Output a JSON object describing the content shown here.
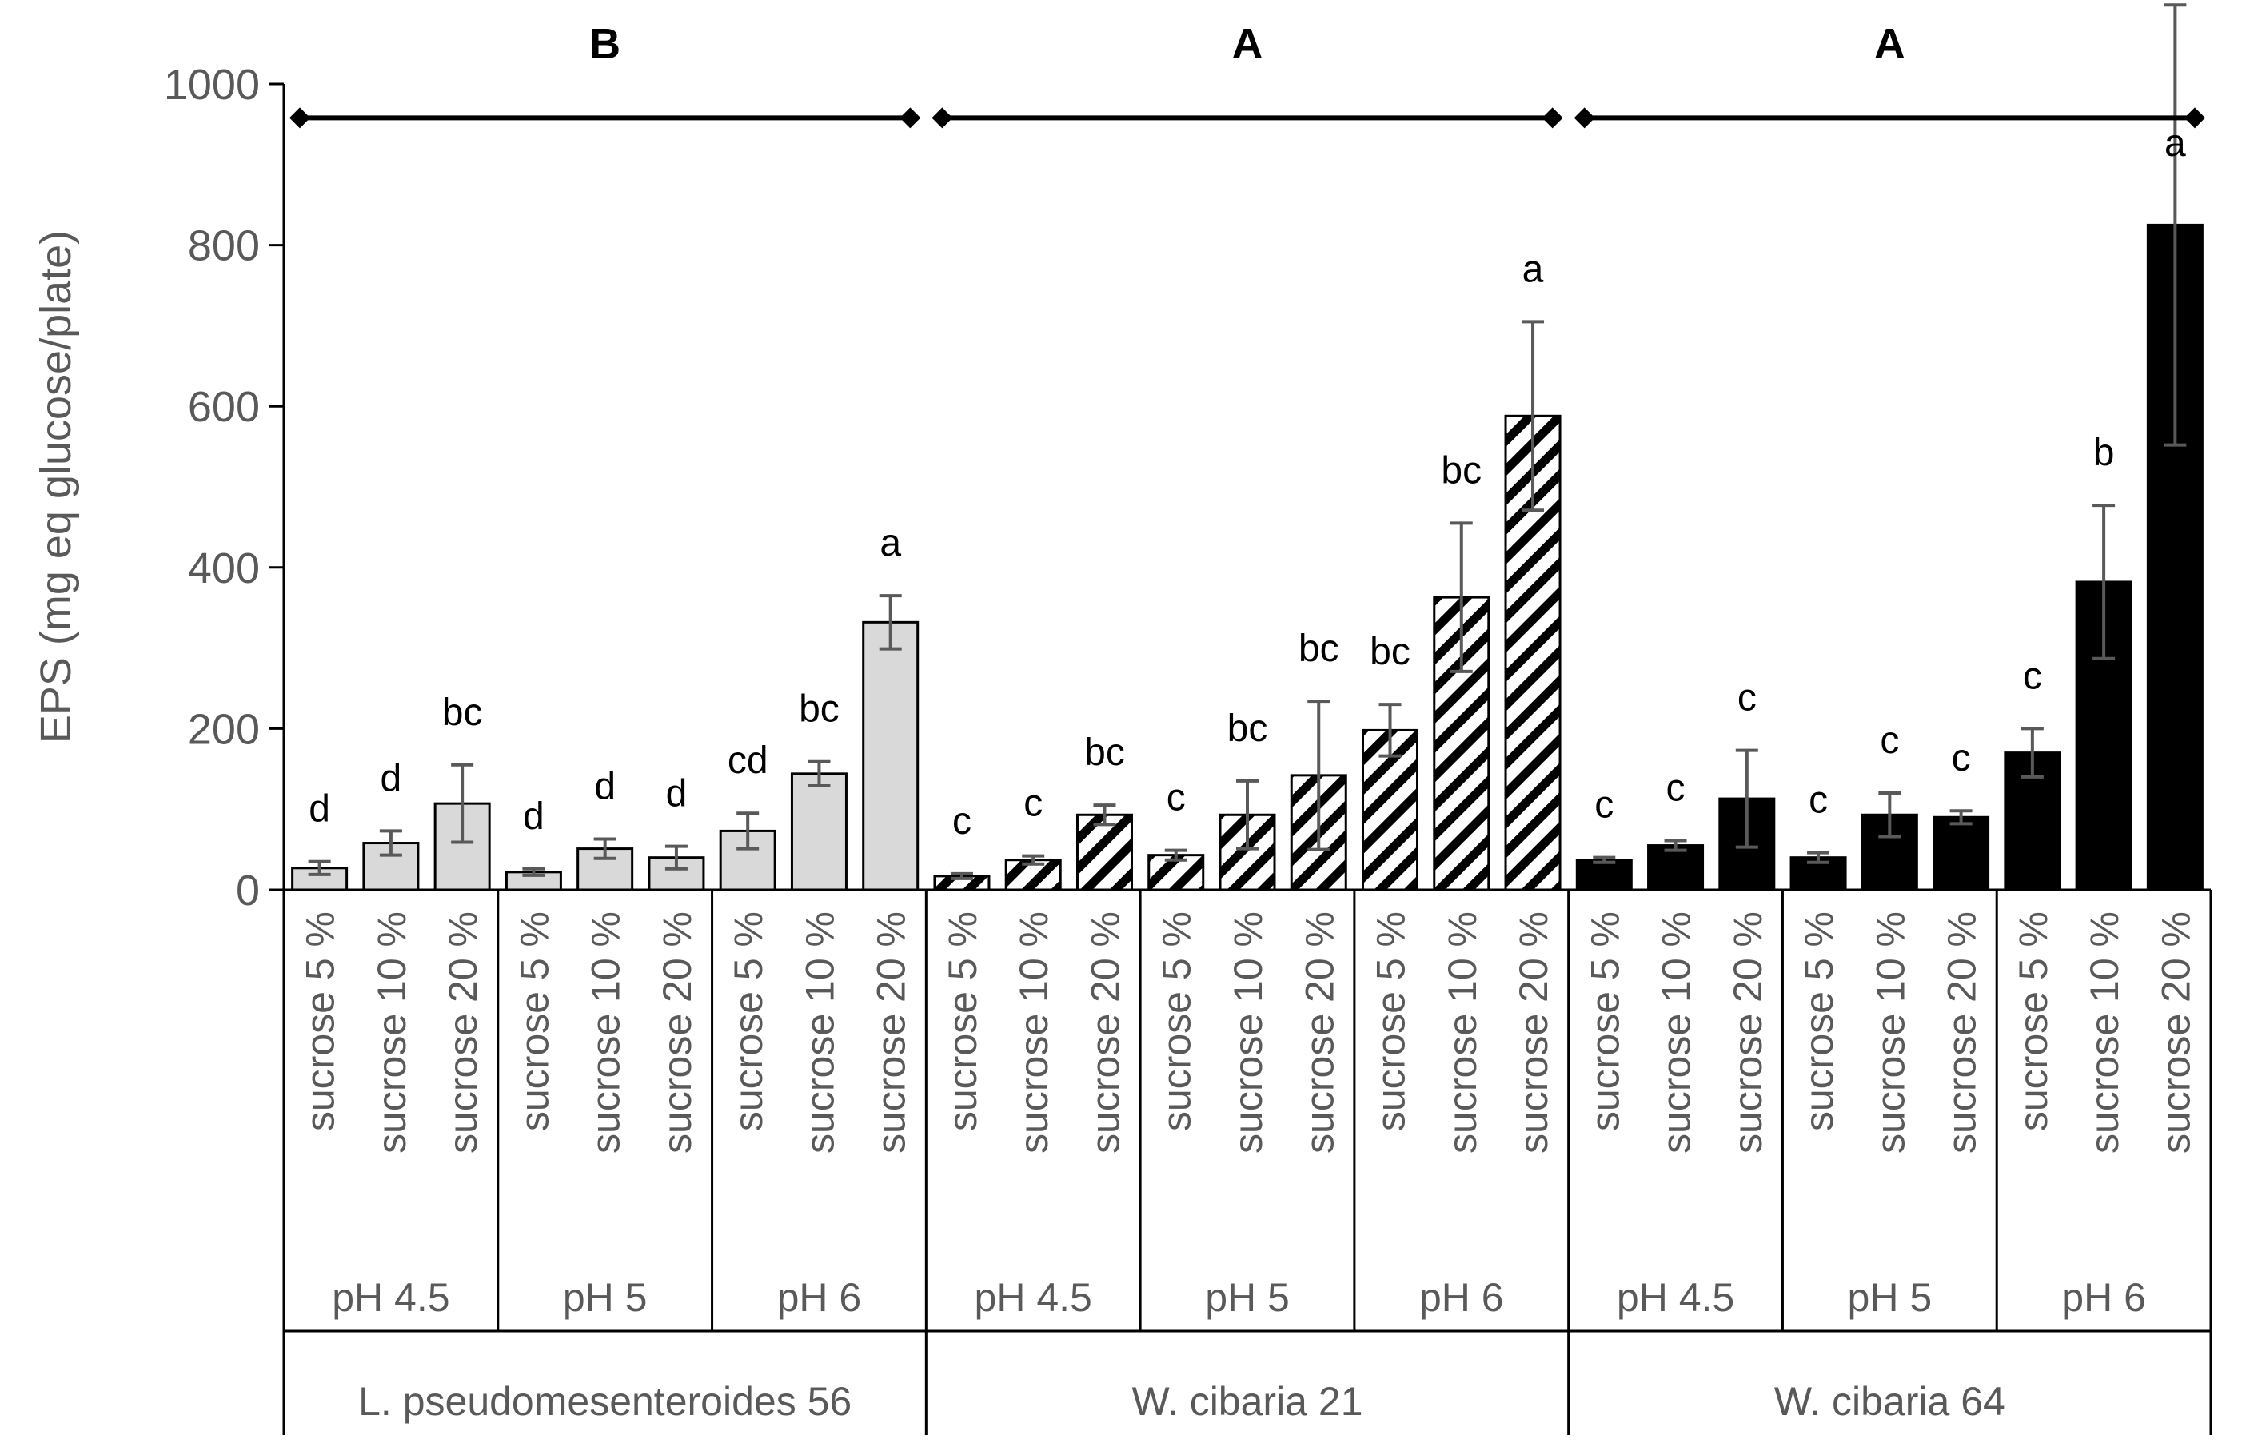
{
  "chart_data": {
    "type": "bar",
    "title": "",
    "xlabel": "",
    "ylabel": "EPS (mg eq glucose/plate)",
    "ylim": [
      0,
      1000
    ],
    "yticks": [
      "0",
      "200",
      "400",
      "600",
      "800",
      "1000"
    ],
    "grid": false,
    "legend": "none",
    "strain_labels": [
      "L. pseudomesenteroides 56",
      "W. cibaria 21",
      "W. cibaria 64"
    ],
    "ph_labels": [
      "pH 4.5",
      "pH 5",
      "pH 6"
    ],
    "sucrose_labels": [
      "sucrose  5 %",
      "sucrose  10 %",
      "sucrose  20 %"
    ],
    "strain_letters": [
      "B",
      "A",
      "A"
    ],
    "colors": {
      "light_fill": "#d9d9d9",
      "dark_fill": "#000000",
      "outline": "#000000",
      "error": "#595959",
      "text": "#595959"
    },
    "series": [
      {
        "name": "L. pseudomesenteroides 56",
        "fill": "light",
        "values": [
          27,
          58,
          107,
          22,
          51,
          40,
          73,
          144,
          332
        ],
        "errors": [
          8,
          15,
          48,
          4,
          12,
          14,
          22,
          15,
          33
        ],
        "letters": [
          "d",
          "d",
          "bc",
          "d",
          "d",
          "d",
          "cd",
          "bc",
          "a"
        ]
      },
      {
        "name": "W. cibaria 21",
        "fill": "hatch",
        "values": [
          17,
          37,
          93,
          43,
          93,
          142,
          198,
          363,
          588
        ],
        "errors": [
          3,
          5,
          12,
          6,
          42,
          92,
          32,
          92,
          117
        ],
        "letters": [
          "c",
          "c",
          "bc",
          "c",
          "bc",
          "bc",
          "bc",
          "bc",
          "a"
        ]
      },
      {
        "name": "W. cibaria 64",
        "fill": "dark",
        "values": [
          37,
          55,
          113,
          40,
          93,
          90,
          170,
          382,
          825
        ],
        "errors": [
          3,
          6,
          60,
          6,
          27,
          8,
          30,
          95,
          273
        ],
        "letters": [
          "c",
          "c",
          "c",
          "c",
          "c",
          "c",
          "c",
          "b",
          "a"
        ]
      }
    ]
  }
}
